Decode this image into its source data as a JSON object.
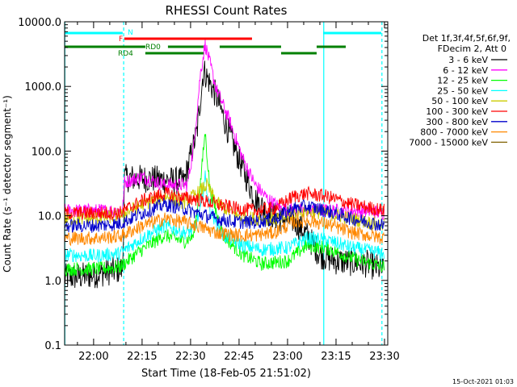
{
  "chart_data": {
    "type": "line",
    "title": "RHESSI Count Rates",
    "xlabel": "Start Time (18-Feb-05 21:51:02)",
    "ylabel": "Count Rate (s⁻¹ detector segment⁻¹)",
    "yscale": "log",
    "ylim": [
      0.1,
      10000
    ],
    "xlim": [
      "21:51:02",
      "23:31:00"
    ],
    "x_unit": "minutes of day",
    "y_ticks": [
      "0.1",
      "1.0",
      "10.0",
      "100.0",
      "1000.0",
      "10000.0"
    ],
    "x_ticks": [
      {
        "t": 1320,
        "label": "22:00"
      },
      {
        "t": 1335,
        "label": "22:15"
      },
      {
        "t": 1350,
        "label": "22:30"
      },
      {
        "t": 1365,
        "label": "22:45"
      },
      {
        "t": 1380,
        "label": "23:00"
      },
      {
        "t": 1395,
        "label": "23:15"
      },
      {
        "t": 1410,
        "label": "23:30"
      }
    ],
    "grid": false,
    "legend_placement": "top-right",
    "legend_header": [
      "Det 1f,3f,4f,5f,6f,9f,",
      "FDecim 2, Att 0"
    ],
    "timestamp": "15-Oct-2021 01:03",
    "series": [
      {
        "name": "3 - 6 keV",
        "color": "#000000",
        "points": [
          [
            1311,
            1.1
          ],
          [
            1319,
            1.2
          ],
          [
            1329,
            1.5
          ],
          [
            1329.5,
            38
          ],
          [
            1334,
            38
          ],
          [
            1342,
            36
          ],
          [
            1348,
            34
          ],
          [
            1352,
            200
          ],
          [
            1354,
            1800
          ],
          [
            1358,
            700
          ],
          [
            1362,
            180
          ],
          [
            1366,
            55
          ],
          [
            1370,
            18
          ],
          [
            1374,
            11
          ],
          [
            1378,
            9
          ],
          [
            1382,
            8.5
          ],
          [
            1386,
            5
          ],
          [
            1390,
            2.5
          ],
          [
            1395,
            2
          ],
          [
            1405,
            1.8
          ],
          [
            1410,
            1.4
          ]
        ]
      },
      {
        "name": "6 - 12 keV",
        "color": "#ff00ff",
        "points": [
          [
            1311,
            12
          ],
          [
            1319,
            12
          ],
          [
            1329,
            12
          ],
          [
            1329.5,
            33
          ],
          [
            1335,
            40
          ],
          [
            1342,
            30
          ],
          [
            1349,
            30
          ],
          [
            1351,
            120
          ],
          [
            1353,
            1500
          ],
          [
            1354.5,
            4500
          ],
          [
            1358,
            900
          ],
          [
            1362,
            300
          ],
          [
            1366,
            80
          ],
          [
            1370,
            30
          ],
          [
            1374,
            18
          ],
          [
            1378,
            13
          ],
          [
            1384,
            12
          ],
          [
            1394,
            12
          ],
          [
            1404,
            12
          ],
          [
            1410,
            11
          ]
        ]
      },
      {
        "name": "12 - 25 keV",
        "color": "#00ff00",
        "points": [
          [
            1311,
            1.5
          ],
          [
            1320,
            1.5
          ],
          [
            1328,
            1.6
          ],
          [
            1335,
            3
          ],
          [
            1342,
            5
          ],
          [
            1348,
            4
          ],
          [
            1351,
            5
          ],
          [
            1353,
            30
          ],
          [
            1354.5,
            200
          ],
          [
            1356,
            25
          ],
          [
            1360,
            5
          ],
          [
            1366,
            2.5
          ],
          [
            1372,
            1.8
          ],
          [
            1380,
            2
          ],
          [
            1386,
            3.5
          ],
          [
            1392,
            3.2
          ],
          [
            1400,
            2.2
          ],
          [
            1410,
            1.6
          ]
        ]
      },
      {
        "name": "25 - 50 keV",
        "color": "#00ffff",
        "points": [
          [
            1311,
            2.5
          ],
          [
            1320,
            2.4
          ],
          [
            1328,
            2.6
          ],
          [
            1335,
            4.5
          ],
          [
            1342,
            7
          ],
          [
            1348,
            5.5
          ],
          [
            1351,
            6
          ],
          [
            1353,
            12
          ],
          [
            1354.5,
            40
          ],
          [
            1356,
            12
          ],
          [
            1360,
            5
          ],
          [
            1366,
            3.5
          ],
          [
            1372,
            3
          ],
          [
            1380,
            3.2
          ],
          [
            1386,
            4.5
          ],
          [
            1392,
            4.2
          ],
          [
            1400,
            3.2
          ],
          [
            1410,
            2.6
          ]
        ]
      },
      {
        "name": "50 - 100 keV",
        "color": "#cccc00",
        "points": [
          [
            1311,
            9
          ],
          [
            1320,
            9
          ],
          [
            1328,
            10
          ],
          [
            1335,
            15
          ],
          [
            1342,
            20
          ],
          [
            1348,
            16
          ],
          [
            1352,
            22
          ],
          [
            1355,
            30
          ],
          [
            1358,
            16
          ],
          [
            1364,
            10
          ],
          [
            1370,
            9
          ],
          [
            1378,
            9
          ],
          [
            1384,
            12
          ],
          [
            1392,
            11
          ],
          [
            1400,
            9
          ],
          [
            1410,
            7
          ]
        ]
      },
      {
        "name": "100 - 300 keV",
        "color": "#ff0000",
        "points": [
          [
            1311,
            11
          ],
          [
            1320,
            11
          ],
          [
            1328,
            11
          ],
          [
            1335,
            17
          ],
          [
            1342,
            22
          ],
          [
            1348,
            19
          ],
          [
            1352,
            18
          ],
          [
            1358,
            15
          ],
          [
            1364,
            13
          ],
          [
            1370,
            12
          ],
          [
            1376,
            13
          ],
          [
            1382,
            20
          ],
          [
            1386,
            22
          ],
          [
            1392,
            20
          ],
          [
            1400,
            15
          ],
          [
            1410,
            12
          ]
        ]
      },
      {
        "name": "300 - 800 keV",
        "color": "#0000cc",
        "points": [
          [
            1311,
            7
          ],
          [
            1320,
            7
          ],
          [
            1328,
            7.5
          ],
          [
            1335,
            11
          ],
          [
            1342,
            15
          ],
          [
            1348,
            13
          ],
          [
            1352,
            11
          ],
          [
            1358,
            9
          ],
          [
            1364,
            8
          ],
          [
            1370,
            8
          ],
          [
            1376,
            9
          ],
          [
            1382,
            13
          ],
          [
            1386,
            14
          ],
          [
            1392,
            12
          ],
          [
            1400,
            9
          ],
          [
            1410,
            7
          ]
        ]
      },
      {
        "name": "800 - 7000 keV",
        "color": "#ff8800",
        "points": [
          [
            1311,
            4.5
          ],
          [
            1320,
            4.5
          ],
          [
            1328,
            4.8
          ],
          [
            1335,
            7
          ],
          [
            1342,
            9
          ],
          [
            1348,
            8
          ],
          [
            1352,
            7
          ],
          [
            1358,
            5.5
          ],
          [
            1364,
            5
          ],
          [
            1370,
            5
          ],
          [
            1376,
            5.5
          ],
          [
            1382,
            8
          ],
          [
            1386,
            8.5
          ],
          [
            1392,
            7.5
          ],
          [
            1400,
            5.5
          ],
          [
            1410,
            4.5
          ]
        ]
      },
      {
        "name": "7000 - 15000 keV",
        "color": "#806000",
        "points": []
      }
    ],
    "attenuator_bars": [
      {
        "label": "N",
        "color": "#00ffff",
        "segments": [
          [
            1311,
            1329
          ],
          [
            1391,
            1409
          ]
        ]
      },
      {
        "label": "F",
        "color": "#ff0000",
        "segments": [
          [
            1329.5,
            1369
          ]
        ]
      },
      {
        "label": "RD0",
        "color": "#008000",
        "segments": [
          [
            1311,
            1336
          ],
          [
            1343,
            1354
          ],
          [
            1359,
            1378
          ],
          [
            1389,
            1398
          ]
        ]
      },
      {
        "label": "RD4",
        "color": "#008000",
        "segments": [
          [
            1336,
            1354
          ],
          [
            1378,
            1389
          ]
        ]
      }
    ],
    "vertical_lines": [
      {
        "t": 1311.1,
        "color": "#00ffff",
        "style": "solid"
      },
      {
        "t": 1329.3,
        "color": "#00ffff",
        "style": "dashed"
      },
      {
        "t": 1391.2,
        "color": "#00ffff",
        "style": "solid"
      },
      {
        "t": 1409.2,
        "color": "#00ffff",
        "style": "dashed"
      }
    ]
  }
}
